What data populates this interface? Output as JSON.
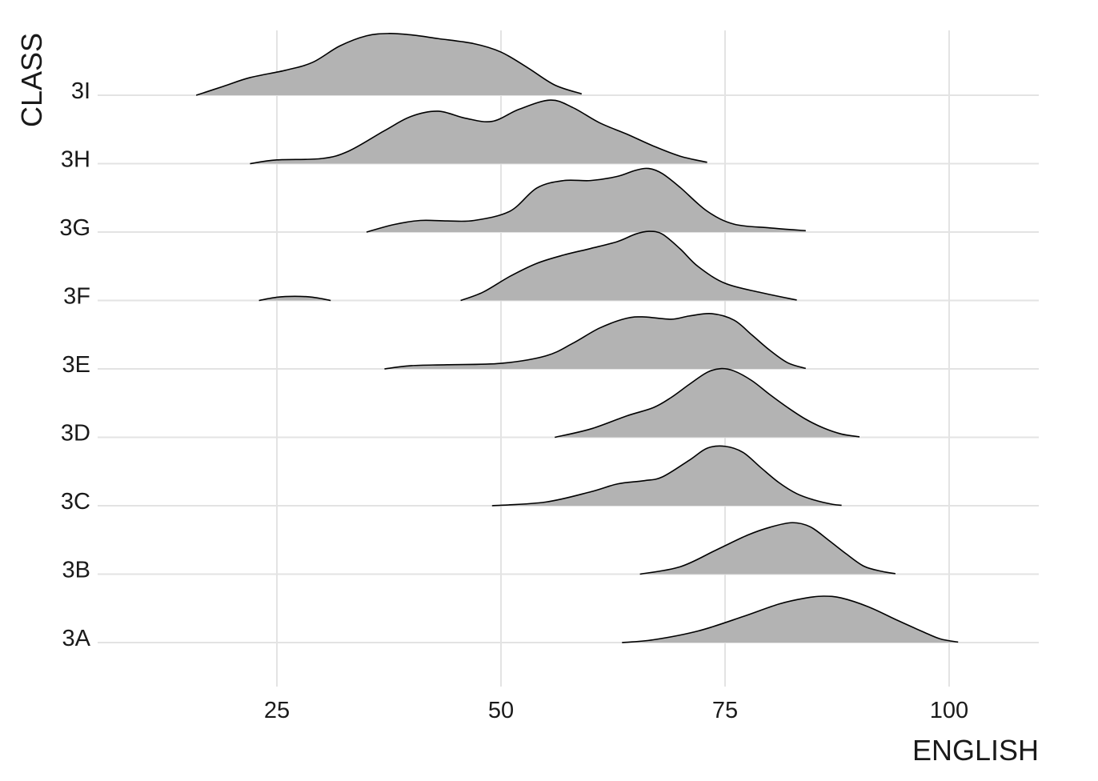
{
  "chart_data": {
    "type": "area",
    "subtype": "ridgeline-density",
    "title": "",
    "xlabel": "ENGLISH",
    "ylabel": "CLASS",
    "xlim": [
      5,
      110
    ],
    "x_ticks": [
      25,
      50,
      75,
      100
    ],
    "x_tick_labels": [
      "25",
      "50",
      "75",
      "100"
    ],
    "categories": [
      "3A",
      "3B",
      "3C",
      "3D",
      "3E",
      "3F",
      "3G",
      "3H",
      "3I"
    ],
    "grid": true,
    "legend": "none",
    "fill_color": "#b3b3b3",
    "line_color": "#000000",
    "series": [
      {
        "name": "3A",
        "x": [
          63.5,
          67,
          72,
          77,
          81,
          84,
          86,
          88,
          91,
          94,
          97,
          99,
          101
        ],
        "density": [
          0.0,
          0.06,
          0.25,
          0.56,
          0.83,
          0.96,
          1.0,
          0.96,
          0.77,
          0.5,
          0.24,
          0.08,
          0.01
        ]
      },
      {
        "name": "3B",
        "x": [
          65.5,
          70,
          74,
          77.5,
          80,
          82.5,
          84.5,
          86.5,
          88.5,
          90.5,
          92.5,
          94
        ],
        "density": [
          0.0,
          0.16,
          0.52,
          0.84,
          1.01,
          1.11,
          1.02,
          0.74,
          0.44,
          0.17,
          0.06,
          0.01
        ]
      },
      {
        "name": "3C",
        "x": [
          49,
          55,
          60,
          63,
          66,
          68,
          71,
          73,
          75,
          77,
          79,
          81,
          83,
          85,
          87,
          88
        ],
        "density": [
          0.0,
          0.08,
          0.3,
          0.47,
          0.54,
          0.62,
          0.98,
          1.24,
          1.28,
          1.15,
          0.82,
          0.5,
          0.26,
          0.12,
          0.03,
          0.01
        ]
      },
      {
        "name": "3D",
        "x": [
          56,
          60,
          64,
          67,
          69,
          71,
          73,
          74.5,
          76,
          78,
          80,
          82,
          84,
          86,
          88,
          90
        ],
        "density": [
          0.0,
          0.18,
          0.46,
          0.64,
          0.86,
          1.14,
          1.4,
          1.48,
          1.43,
          1.22,
          0.92,
          0.64,
          0.39,
          0.2,
          0.07,
          0.01
        ]
      },
      {
        "name": "3E",
        "x": [
          37,
          40,
          44,
          50,
          55,
          58,
          61,
          64,
          66,
          69,
          71,
          73.5,
          76,
          78,
          80,
          82,
          84
        ],
        "density": [
          0.0,
          0.07,
          0.09,
          0.12,
          0.28,
          0.55,
          0.88,
          1.09,
          1.12,
          1.07,
          1.14,
          1.19,
          1.05,
          0.73,
          0.4,
          0.13,
          0.01
        ]
      },
      {
        "name": "3F",
        "x": [
          23,
          25,
          27,
          29,
          31,
          45.5,
          48,
          51,
          54,
          57,
          60,
          63,
          65,
          66.5,
          68,
          70,
          72,
          75,
          79,
          83
        ],
        "density": [
          0.0,
          0.07,
          0.09,
          0.07,
          0.0,
          0.0,
          0.18,
          0.52,
          0.8,
          0.98,
          1.12,
          1.27,
          1.43,
          1.49,
          1.43,
          1.11,
          0.73,
          0.37,
          0.17,
          0.01
        ]
      },
      {
        "name": "3G",
        "x": [
          35,
          38,
          41,
          44,
          47,
          51,
          54,
          57,
          60,
          63,
          65,
          66.5,
          68,
          70,
          73,
          76,
          80,
          84
        ],
        "density": [
          0.0,
          0.16,
          0.25,
          0.24,
          0.25,
          0.45,
          0.95,
          1.11,
          1.11,
          1.2,
          1.33,
          1.37,
          1.26,
          0.96,
          0.45,
          0.17,
          0.09,
          0.03
        ]
      },
      {
        "name": "3H",
        "x": [
          22,
          25,
          30,
          33,
          37,
          40,
          43,
          46,
          49,
          52,
          55.5,
          58,
          61,
          64,
          67,
          70,
          73
        ],
        "density": [
          0.0,
          0.08,
          0.11,
          0.27,
          0.71,
          1.02,
          1.13,
          0.98,
          0.91,
          1.17,
          1.37,
          1.21,
          0.88,
          0.64,
          0.38,
          0.16,
          0.03
        ]
      },
      {
        "name": "3I",
        "x": [
          16,
          19,
          22,
          26,
          29,
          32,
          35,
          37.5,
          40,
          43,
          47,
          50,
          53,
          56,
          59
        ],
        "density": [
          0.0,
          0.19,
          0.38,
          0.54,
          0.71,
          1.06,
          1.28,
          1.33,
          1.3,
          1.22,
          1.11,
          0.93,
          0.59,
          0.22,
          0.03
        ]
      }
    ]
  }
}
